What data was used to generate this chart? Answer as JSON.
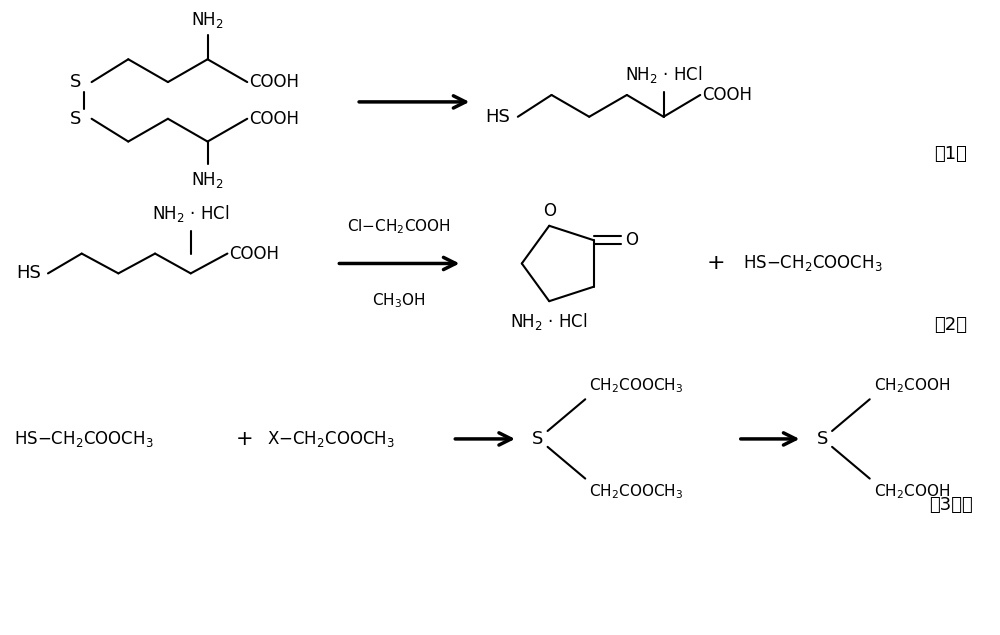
{
  "bg_color": "#ffffff",
  "line_color": "#000000",
  "figsize": [
    10.0,
    6.35
  ],
  "dpi": 100,
  "xlim": [
    0,
    10
  ],
  "ylim": [
    0,
    6.35
  ]
}
